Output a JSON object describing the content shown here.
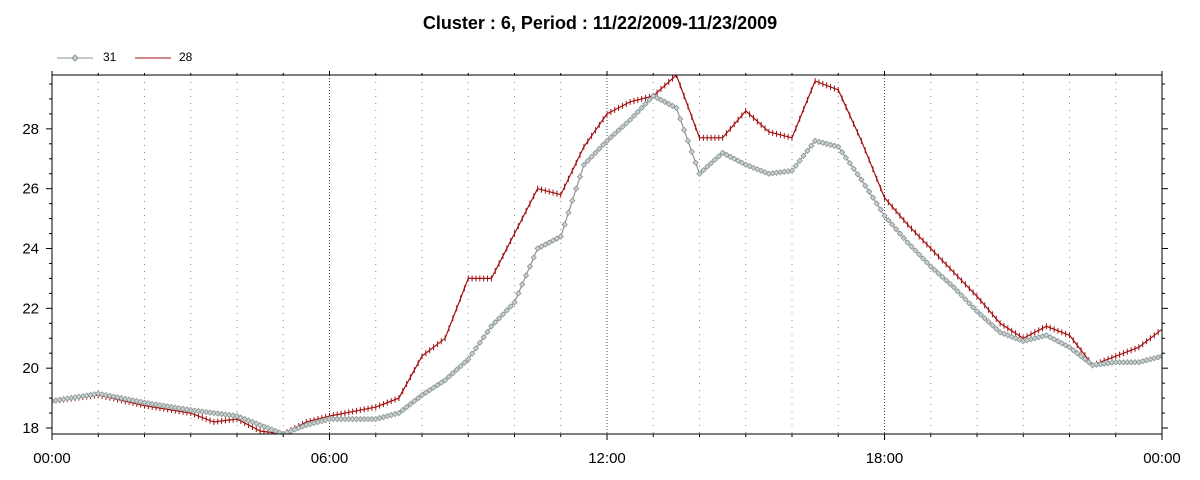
{
  "chart_data": {
    "type": "line",
    "title": "Cluster : 6, Period : 11/22/2009-11/23/2009",
    "xlabel": "",
    "ylabel": "",
    "x_tick_labels": [
      "00:00",
      "06:00",
      "12:00",
      "18:00",
      "00:00"
    ],
    "x_range_hours": [
      0,
      24
    ],
    "y_ticks": [
      18,
      20,
      22,
      24,
      26,
      28
    ],
    "ylim": [
      17.8,
      29.8
    ],
    "grid": "vertical dotted",
    "legend_position": "top-left",
    "series": [
      {
        "name": "31",
        "color": "#8a9595",
        "marker": "diamond",
        "x_hours": [
          0,
          1,
          2,
          3,
          4,
          4.5,
          5,
          5.5,
          6,
          7,
          7.5,
          8,
          8.5,
          9,
          9.5,
          10,
          10.5,
          11,
          11.5,
          12,
          12.5,
          13,
          13.5,
          14,
          14.5,
          15,
          15.5,
          16,
          16.5,
          17,
          17.5,
          18,
          18.5,
          19,
          19.5,
          20,
          20.5,
          21,
          21.5,
          22,
          22.5,
          23,
          23.5,
          24
        ],
        "values": [
          18.9,
          19.15,
          18.85,
          18.6,
          18.4,
          18.1,
          17.8,
          18.1,
          18.3,
          18.3,
          18.5,
          19.1,
          19.6,
          20.3,
          21.4,
          22.2,
          24.0,
          24.4,
          26.8,
          27.6,
          28.3,
          29.1,
          28.7,
          26.5,
          27.2,
          26.8,
          26.5,
          26.6,
          27.6,
          27.4,
          26.3,
          25.1,
          24.2,
          23.4,
          22.7,
          21.9,
          21.2,
          20.9,
          21.1,
          20.7,
          20.1,
          20.2,
          20.2,
          20.4
        ]
      },
      {
        "name": "28",
        "color": "#a01010",
        "marker": "plus",
        "x_hours": [
          0,
          1,
          2,
          3,
          3.5,
          4,
          4.5,
          5,
          5.5,
          6,
          7,
          7.5,
          8,
          8.5,
          9,
          9.5,
          10,
          10.5,
          11,
          11.5,
          12,
          12.5,
          13,
          13.5,
          14,
          14.5,
          15,
          15.5,
          16,
          16.5,
          17,
          17.5,
          18,
          18.5,
          19,
          19.5,
          20,
          20.5,
          21,
          21.5,
          22,
          22.5,
          23,
          23.5,
          24
        ],
        "values": [
          18.9,
          19.1,
          18.75,
          18.5,
          18.2,
          18.3,
          17.9,
          17.8,
          18.2,
          18.4,
          18.7,
          19.0,
          20.4,
          21.0,
          23.0,
          23.0,
          24.5,
          26.0,
          25.8,
          27.4,
          28.5,
          28.9,
          29.1,
          29.8,
          27.7,
          27.7,
          28.6,
          27.9,
          27.7,
          29.6,
          29.3,
          27.6,
          25.7,
          24.8,
          24.0,
          23.2,
          22.4,
          21.5,
          21.0,
          21.4,
          21.1,
          20.1,
          20.4,
          20.7,
          21.3
        ]
      }
    ]
  }
}
